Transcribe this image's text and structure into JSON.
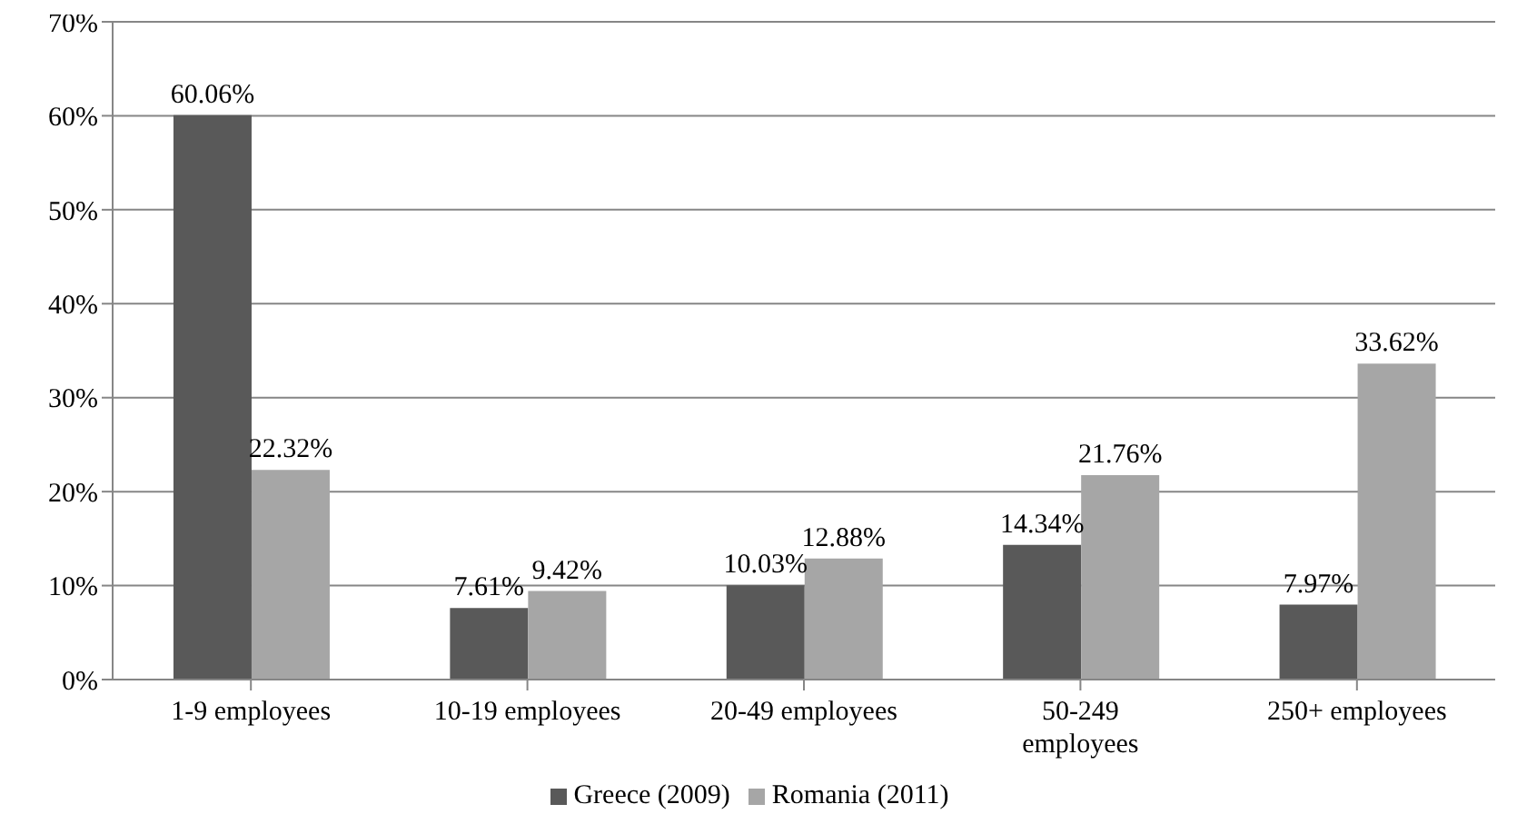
{
  "chart_data": {
    "type": "bar",
    "categories": [
      "1-9 employees",
      "10-19 employees",
      "20-49 employees",
      "50-249 employees",
      "250+ employees"
    ],
    "series": [
      {
        "name": "Greece (2009)",
        "color": "#595959",
        "values": [
          60.06,
          7.61,
          10.03,
          14.34,
          7.97
        ],
        "value_labels": [
          "60.06%",
          "7.61%",
          "10.03%",
          "14.34%",
          "7.97%"
        ]
      },
      {
        "name": "Romania (2011)",
        "color": "#a6a6a6",
        "values": [
          22.32,
          9.42,
          12.88,
          21.76,
          33.62
        ],
        "value_labels": [
          "22.32%",
          "9.42%",
          "12.88%",
          "21.76%",
          "33.62%"
        ]
      }
    ],
    "ylim": [
      0,
      70
    ],
    "yticks": [
      {
        "value": 0,
        "label": "0%"
      },
      {
        "value": 10,
        "label": "10%"
      },
      {
        "value": 20,
        "label": "20%"
      },
      {
        "value": 30,
        "label": "30%"
      },
      {
        "value": 40,
        "label": "40%"
      },
      {
        "value": 50,
        "label": "50%"
      },
      {
        "value": 60,
        "label": "60%"
      },
      {
        "value": 70,
        "label": "70%"
      }
    ],
    "grid": "y",
    "legend": "bottom"
  }
}
